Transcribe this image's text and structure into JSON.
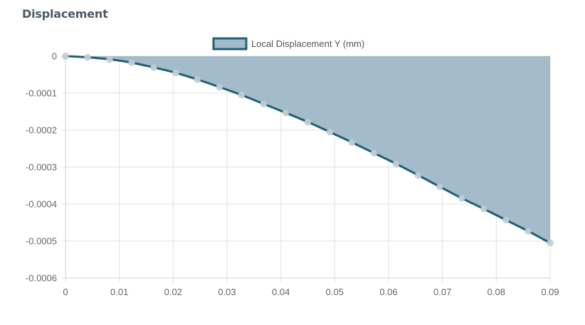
{
  "panel": {
    "title": "Displacement"
  },
  "chart_data": {
    "type": "area",
    "title": "",
    "xlabel": "",
    "ylabel": "",
    "xlim": [
      0,
      0.09
    ],
    "ylim": [
      -0.0006,
      0
    ],
    "x_ticks": [
      "0",
      "0.01",
      "0.02",
      "0.03",
      "0.04",
      "0.05",
      "0.06",
      "0.07",
      "0.08",
      "0.09"
    ],
    "y_ticks": [
      "0",
      "-0.0001",
      "-0.0002",
      "-0.0003",
      "-0.0004",
      "-0.0005",
      "-0.0006"
    ],
    "grid": true,
    "legend_position": "top-center",
    "fill_to": "top",
    "series": [
      {
        "name": "Local Displacement Y (mm)",
        "color": "#1f5f78",
        "fill": "#a4bcc9",
        "x": [
          0,
          0.0041,
          0.0082,
          0.0123,
          0.0164,
          0.0205,
          0.0245,
          0.0286,
          0.0327,
          0.0368,
          0.0409,
          0.045,
          0.0491,
          0.0532,
          0.0573,
          0.0614,
          0.0655,
          0.0695,
          0.0736,
          0.0777,
          0.0818,
          0.0859,
          0.09
        ],
        "y": [
          0,
          -3e-06,
          -8.5e-06,
          -1.75e-05,
          -3.05e-05,
          -4.5e-05,
          -6.3e-05,
          -8.35e-05,
          -0.000105,
          -0.000129,
          -0.000153,
          -0.000178,
          -0.000205,
          -0.000233,
          -0.000262,
          -0.000291,
          -0.000322,
          -0.000353,
          -0.000384,
          -0.000413,
          -0.000443,
          -0.000473,
          -0.000505
        ]
      }
    ]
  }
}
